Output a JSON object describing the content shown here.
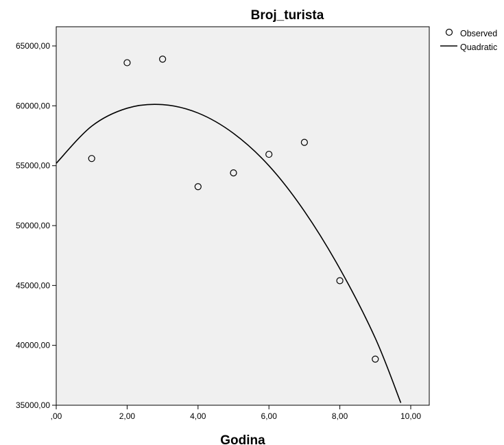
{
  "chart_data": {
    "type": "scatter",
    "title": "Broj_turista",
    "xlabel": "Godina",
    "ylabel": "",
    "xlim": [
      0,
      10.5
    ],
    "ylim": [
      35000,
      67000
    ],
    "x_ticks": [
      {
        "value": 0,
        "label": ",00"
      },
      {
        "value": 2,
        "label": "2,00"
      },
      {
        "value": 4,
        "label": "4,00"
      },
      {
        "value": 6,
        "label": "6,00"
      },
      {
        "value": 8,
        "label": "8,00"
      },
      {
        "value": 10,
        "label": "10,00"
      }
    ],
    "y_ticks": [
      {
        "value": 35000,
        "label": "35000,00"
      },
      {
        "value": 40000,
        "label": "40000,00"
      },
      {
        "value": 45000,
        "label": "45000,00"
      },
      {
        "value": 50000,
        "label": "50000,00"
      },
      {
        "value": 55000,
        "label": "55000,00"
      },
      {
        "value": 60000,
        "label": "60000,00"
      },
      {
        "value": 65000,
        "label": "65000,00"
      }
    ],
    "series": [
      {
        "name": "Observed",
        "kind": "points",
        "x": [
          1,
          2,
          3,
          4,
          5,
          6,
          7,
          8,
          9
        ],
        "y": [
          55600,
          63600,
          63900,
          53250,
          54400,
          55950,
          56950,
          45400,
          38850
        ]
      },
      {
        "name": "Quadratic",
        "kind": "curve",
        "x": [
          0,
          1,
          2,
          3,
          4,
          5,
          6,
          7,
          8,
          9,
          9.72
        ],
        "y": [
          55200,
          58300,
          59800,
          60100,
          59400,
          57700,
          55000,
          51200,
          46400,
          40600,
          35200
        ]
      }
    ],
    "background_color": "#f0f0f0",
    "marker_color": "#000000",
    "line_color": "#000000",
    "grid": false,
    "legend_position": "top-right-outside"
  }
}
